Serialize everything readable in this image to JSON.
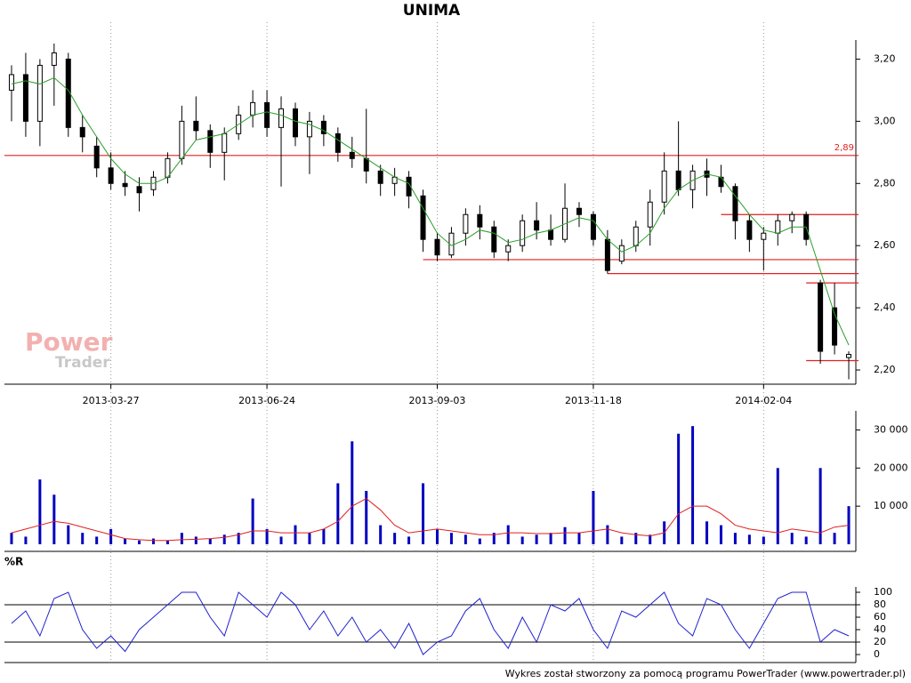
{
  "chart_data": [
    {
      "type": "candlestick",
      "title": "UNIMA",
      "categories": [
        null,
        null,
        null,
        null,
        null,
        null,
        null,
        "2013-03-27",
        null,
        null,
        null,
        null,
        null,
        null,
        null,
        null,
        null,
        null,
        "2013-06-24",
        null,
        null,
        null,
        null,
        null,
        null,
        null,
        null,
        null,
        null,
        null,
        "2013-09-03",
        null,
        null,
        null,
        null,
        null,
        null,
        null,
        null,
        null,
        null,
        "2013-11-18",
        null,
        null,
        null,
        null,
        null,
        null,
        null,
        null,
        null,
        null,
        null,
        "2014-02-04",
        null,
        null,
        null,
        null,
        null,
        null
      ],
      "open": [
        3.1,
        3.15,
        3.0,
        3.18,
        3.2,
        2.98,
        2.92,
        2.85,
        2.8,
        2.79,
        2.78,
        2.82,
        2.88,
        3.0,
        2.97,
        2.9,
        2.96,
        3.02,
        3.06,
        2.98,
        3.04,
        2.95,
        3.0,
        2.96,
        2.9,
        2.88,
        2.84,
        2.8,
        2.82,
        2.76,
        2.62,
        2.57,
        2.64,
        2.7,
        2.66,
        2.58,
        2.6,
        2.68,
        2.65,
        2.62,
        2.72,
        2.7,
        2.62,
        2.55,
        2.6,
        2.66,
        2.74,
        2.84,
        2.78,
        2.84,
        2.82,
        2.79,
        2.68,
        2.62,
        2.64,
        2.68,
        2.7,
        2.48,
        2.4,
        2.24
      ],
      "high": [
        3.18,
        3.22,
        3.2,
        3.25,
        3.22,
        3.02,
        2.95,
        2.9,
        2.84,
        2.82,
        2.84,
        2.9,
        3.05,
        3.08,
        2.99,
        2.98,
        3.05,
        3.1,
        3.1,
        3.08,
        3.06,
        3.03,
        3.02,
        2.98,
        2.95,
        3.04,
        2.86,
        2.85,
        2.84,
        2.78,
        2.64,
        2.66,
        2.72,
        2.73,
        2.68,
        2.62,
        2.7,
        2.74,
        2.7,
        2.8,
        2.74,
        2.71,
        2.65,
        2.62,
        2.68,
        2.78,
        2.9,
        3.0,
        2.86,
        2.88,
        2.86,
        2.8,
        2.7,
        2.66,
        2.7,
        2.71,
        2.71,
        2.49,
        2.48,
        2.26
      ],
      "low": [
        3.0,
        2.95,
        2.92,
        3.05,
        2.95,
        2.9,
        2.82,
        2.78,
        2.76,
        2.71,
        2.76,
        2.8,
        2.86,
        2.94,
        2.85,
        2.81,
        2.94,
        2.98,
        2.95,
        2.79,
        2.92,
        2.83,
        2.92,
        2.87,
        2.85,
        2.8,
        2.76,
        2.76,
        2.72,
        2.58,
        2.55,
        2.56,
        2.6,
        2.62,
        2.56,
        2.55,
        2.58,
        2.62,
        2.6,
        2.61,
        2.66,
        2.6,
        2.51,
        2.54,
        2.58,
        2.6,
        2.7,
        2.76,
        2.72,
        2.76,
        2.77,
        2.62,
        2.58,
        2.52,
        2.6,
        2.64,
        2.6,
        2.22,
        2.25,
        2.17
      ],
      "close": [
        3.15,
        3.0,
        3.18,
        3.22,
        2.98,
        2.95,
        2.85,
        2.8,
        2.79,
        2.77,
        2.82,
        2.88,
        3.0,
        2.97,
        2.9,
        2.96,
        3.02,
        3.06,
        2.98,
        3.04,
        2.95,
        3.0,
        2.96,
        2.9,
        2.88,
        2.84,
        2.8,
        2.82,
        2.76,
        2.62,
        2.57,
        2.64,
        2.7,
        2.66,
        2.58,
        2.6,
        2.68,
        2.65,
        2.62,
        2.72,
        2.7,
        2.62,
        2.52,
        2.6,
        2.66,
        2.74,
        2.84,
        2.78,
        2.84,
        2.82,
        2.79,
        2.68,
        2.62,
        2.64,
        2.68,
        2.7,
        2.62,
        2.26,
        2.28,
        2.25
      ],
      "lines": [
        {
          "color": "#2a9d2a",
          "values": [
            3.12,
            3.13,
            3.12,
            3.14,
            3.1,
            3.02,
            2.95,
            2.88,
            2.83,
            2.8,
            2.8,
            2.82,
            2.88,
            2.94,
            2.95,
            2.96,
            2.99,
            3.02,
            3.03,
            3.02,
            3.0,
            2.99,
            2.97,
            2.94,
            2.91,
            2.88,
            2.85,
            2.82,
            2.8,
            2.72,
            2.64,
            2.6,
            2.62,
            2.65,
            2.64,
            2.61,
            2.62,
            2.64,
            2.65,
            2.67,
            2.69,
            2.68,
            2.62,
            2.58,
            2.6,
            2.64,
            2.72,
            2.78,
            2.81,
            2.83,
            2.82,
            2.76,
            2.7,
            2.65,
            2.64,
            2.66,
            2.66,
            2.52,
            2.38,
            2.28
          ]
        }
      ],
      "hlines": [
        {
          "value": 2.89,
          "label": "2,89",
          "start": 0
        },
        {
          "value": 2.7,
          "start": 50
        },
        {
          "value": 2.555,
          "start": 29
        },
        {
          "value": 2.51,
          "start": 42
        },
        {
          "value": 2.48,
          "start": 56
        },
        {
          "value": 2.23,
          "start": 56
        }
      ],
      "hline_color": "#e02020",
      "ylim": [
        2.16,
        3.31
      ],
      "yticks": [
        {
          "value": 2.2,
          "label": "2,20"
        },
        {
          "value": 2.4,
          "label": "2,40"
        },
        {
          "value": 2.6,
          "label": "2,60"
        },
        {
          "value": 2.8,
          "label": "2,80"
        },
        {
          "value": 3.0,
          "label": "3,00"
        },
        {
          "value": 3.2,
          "label": "3,20"
        }
      ],
      "grid": true
    },
    {
      "type": "bar",
      "color": "#0000c0",
      "values": [
        3000,
        2000,
        17000,
        13000,
        5000,
        3000,
        2000,
        4000,
        1500,
        1000,
        1500,
        1000,
        3000,
        2000,
        1500,
        2500,
        3000,
        12000,
        4000,
        2000,
        5000,
        3000,
        4000,
        16000,
        27000,
        14000,
        5000,
        3000,
        2000,
        16000,
        4000,
        3000,
        2500,
        1500,
        3000,
        5000,
        2000,
        2500,
        3000,
        4500,
        3000,
        14000,
        5000,
        2000,
        3000,
        2500,
        6000,
        29000,
        31000,
        6000,
        5000,
        3000,
        2500,
        2000,
        20000,
        3000,
        2000,
        20000,
        3000,
        10000
      ],
      "lines": [
        {
          "color": "#e02020",
          "values": [
            3000,
            4000,
            5000,
            6000,
            5500,
            4500,
            3500,
            2500,
            1500,
            1200,
            1000,
            1000,
            1200,
            1300,
            1500,
            1800,
            2500,
            3500,
            3500,
            3000,
            3000,
            3000,
            4000,
            6000,
            10000,
            12000,
            9000,
            5000,
            3000,
            3500,
            4000,
            3500,
            3000,
            2500,
            2500,
            3000,
            3000,
            2800,
            2800,
            3000,
            3000,
            3500,
            4000,
            3000,
            2500,
            2200,
            3000,
            8000,
            10000,
            10000,
            8000,
            5000,
            4000,
            3500,
            3000,
            4000,
            3500,
            3000,
            4500,
            5000
          ]
        }
      ],
      "ylim": [
        0,
        35000
      ],
      "yticks": [
        {
          "value": 10000,
          "label": "10 000"
        },
        {
          "value": 20000,
          "label": "20 000"
        },
        {
          "value": 30000,
          "label": "30 000"
        }
      ]
    },
    {
      "type": "line",
      "title": "%R",
      "color": "#2020d0",
      "values": [
        50,
        70,
        30,
        90,
        100,
        40,
        10,
        30,
        5,
        40,
        60,
        80,
        100,
        100,
        60,
        30,
        100,
        80,
        60,
        100,
        80,
        40,
        70,
        30,
        60,
        20,
        40,
        10,
        50,
        0,
        20,
        30,
        70,
        90,
        40,
        10,
        60,
        20,
        80,
        70,
        90,
        40,
        10,
        70,
        60,
        80,
        100,
        50,
        30,
        90,
        80,
        40,
        10,
        50,
        90,
        100,
        100,
        20,
        40,
        30
      ],
      "levels": [
        20,
        80
      ],
      "ylim": [
        0,
        100
      ],
      "yticks": [
        0,
        20,
        40,
        60,
        80,
        100
      ]
    }
  ],
  "watermark": {
    "line1": "Power",
    "line2": "Trader"
  },
  "footer": "Wykres został stworzony za pomocą programu PowerTrader (www.powertrader.pl)"
}
